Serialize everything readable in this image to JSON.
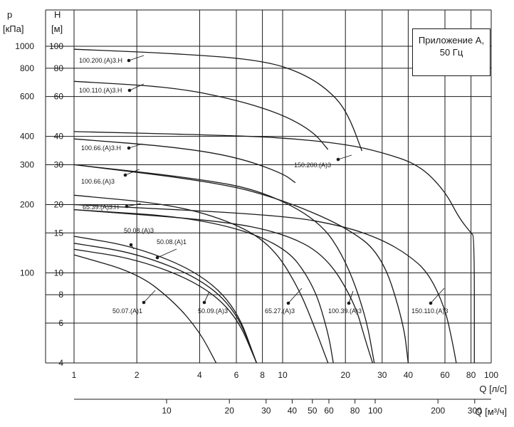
{
  "chart_data": {
    "type": "line",
    "title": "",
    "xscale": "log",
    "yscale": "log",
    "axes": {
      "q_ls": {
        "label": "Q [л/с]",
        "ticks": [
          "1",
          "2",
          "4",
          "6",
          "8",
          "10",
          "20",
          "30",
          "40",
          "60",
          "80",
          "100"
        ],
        "range": [
          1,
          100
        ]
      },
      "q_m3h": {
        "label": "Q [м³/ч]",
        "ticks": [
          "10",
          "20",
          "30",
          "40",
          "50",
          "60",
          "80",
          "100",
          "200",
          "300"
        ]
      },
      "h_m": {
        "unit": "H",
        "unit2": "[м]",
        "ticks": [
          "4",
          "6",
          "8",
          "10",
          "15",
          "20",
          "30",
          "40",
          "60",
          "80",
          "100"
        ],
        "range": [
          4,
          100
        ]
      },
      "p_kpa": {
        "unit": "p",
        "unit2": "[кПа]",
        "ticks": [
          "100",
          "200",
          "300",
          "400",
          "600",
          "800",
          "1000"
        ]
      }
    },
    "annotation": [
      "Приложение А,",
      "50 Гц"
    ],
    "grid": true,
    "series": [
      {
        "name": "50.07.(A)1",
        "x": [
          1.0,
          2.0,
          3.0,
          4.0,
          4.8
        ],
        "y": [
          12.0,
          10.0,
          7.5,
          5.5,
          4.0
        ]
      },
      {
        "name": "50.08.(A)1",
        "x": [
          1.0,
          2.0,
          4.0,
          6.0,
          7.5
        ],
        "y": [
          12.7,
          11.5,
          9.0,
          6.5,
          4.0
        ]
      },
      {
        "name": "50.09.(A)3",
        "x": [
          1.0,
          2.0,
          4.0,
          6.0,
          7.5
        ],
        "y": [
          13.5,
          12.2,
          9.5,
          6.8,
          4.0
        ]
      },
      {
        "name": "50.08.(A)3",
        "x": [
          1.0,
          2.0,
          4.0,
          6.0,
          7.5
        ],
        "y": [
          14.5,
          13.0,
          10.0,
          7.0,
          4.0
        ]
      },
      {
        "name": "65.39.(A)3.H",
        "x": [
          1.0,
          3.0,
          6.0,
          9.0,
          12.0,
          14.5,
          16.5
        ],
        "y": [
          22.0,
          20.0,
          16.5,
          13.0,
          8.5,
          5.5,
          4.0
        ]
      },
      {
        "name": "65.27.(A)3",
        "x": [
          1.0,
          4.0,
          10.0,
          14.0,
          16.5,
          17.5
        ],
        "y": [
          19.0,
          17.5,
          13.5,
          9.0,
          5.5,
          4.0
        ]
      },
      {
        "name": "100.66.(A)3",
        "x": [
          1.0,
          4.0,
          8.0,
          15.0,
          20.0,
          25.0,
          27.5
        ],
        "y": [
          30.0,
          26.0,
          23.0,
          17.0,
          11.5,
          6.5,
          4.0
        ]
      },
      {
        "name": "100.39.(A)3",
        "x": [
          1.0,
          5.0,
          10.0,
          16.0,
          22.0,
          25.0,
          27.0
        ],
        "y": [
          19.0,
          17.0,
          15.0,
          12.0,
          7.5,
          5.0,
          4.0
        ]
      },
      {
        "name": "100.66.(A)3.H",
        "x": [
          1.0,
          3.0,
          6.0,
          10.0,
          11.5
        ],
        "y": [
          39.0,
          36.0,
          32.5,
          27.5,
          25.0
        ]
      },
      {
        "name": "100.110.(A)3.H",
        "x": [
          1.0,
          3.0,
          6.0,
          10.0,
          14.0,
          16.5
        ],
        "y": [
          70.0,
          66.0,
          58.0,
          50.0,
          42.0,
          35.0
        ]
      },
      {
        "name": "100.200.(A)3.H",
        "x": [
          1.0,
          3.0,
          8.0,
          13.0,
          18.0,
          21.0,
          24.0
        ],
        "y": [
          97.0,
          93.0,
          87.0,
          75.0,
          60.0,
          48.0,
          34.5
        ]
      },
      {
        "name": "150.110.(A)3",
        "x": [
          1.0,
          5.0,
          10.0,
          20.0,
          30.0,
          38.0,
          40.0
        ],
        "y": [
          30.0,
          25.0,
          21.0,
          16.0,
          12.0,
          6.0,
          4.0
        ]
      },
      {
        "name": "150.200.(A)3",
        "x": [
          1.0,
          5.0,
          10.0,
          20.0,
          30.0,
          45.0,
          60.0,
          70.0,
          80.0,
          83.0,
          83.0
        ],
        "y": [
          42.0,
          40.5,
          39.5,
          37.0,
          34.0,
          30.0,
          23.0,
          17.5,
          15.0,
          14.5,
          4.0
        ]
      },
      {
        "name": "150.110.(A)3 (правая кривая)",
        "x": [
          1.0,
          10.0,
          20.0,
          30.0,
          40.0,
          50.0,
          60.0,
          65.0,
          68.0
        ],
        "y": [
          20.0,
          18.0,
          16.0,
          14.0,
          12.0,
          10.0,
          7.0,
          5.0,
          4.0
        ]
      }
    ]
  }
}
